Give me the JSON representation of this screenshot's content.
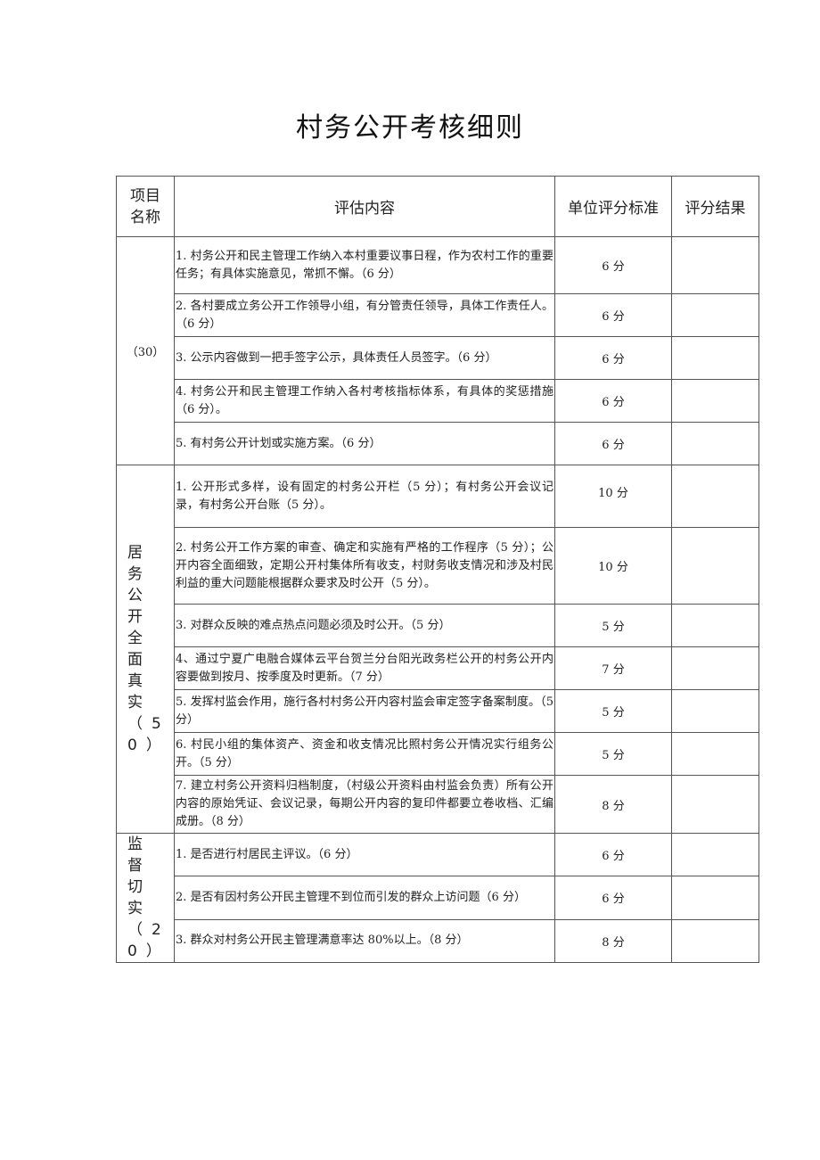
{
  "title": "村务公开考核细则",
  "headers": {
    "item": "项目名称",
    "content": "评估内容",
    "standard": "单位评分标准",
    "result": "评分结果"
  },
  "sections": [
    {
      "name": "（30）",
      "rows": [
        {
          "content": "1. 村务公开和民主管理工作纳入本村重要议事日程，作为农村工作的重要任务；有具体实施意见，常抓不懈。（6 分）",
          "score": "6 分",
          "result": ""
        },
        {
          "content": "2. 各村要成立务公开工作领导小组，有分管责任领导，具体工作责任人。（6 分）",
          "score": "6 分",
          "result": ""
        },
        {
          "content": "3. 公示内容做到一把手签字公示，具体责任人员签字。（6 分）",
          "score": "6 分",
          "result": ""
        },
        {
          "content": "4. 村务公开和民主管理工作纳入各村考核指标体系，有具体的奖惩措施（6 分）。",
          "score": "6 分",
          "result": ""
        },
        {
          "content": "5. 有村务公开计划或实施方案。（6 分）",
          "score": "6 分",
          "result": ""
        }
      ]
    },
    {
      "name": "居务公开全面真实（50）",
      "rows": [
        {
          "content": "1. 公开形式多样，设有固定的村务公开栏（5 分）；有村务公开会议记录，有村务公开台账（5 分）。",
          "score": "10 分",
          "result": ""
        },
        {
          "content": "2. 村务公开工作方案的审查、确定和实施有严格的工作程序（5 分）；公开内容全面细致，定期公开村集体所有收支，村财务收支情况和涉及村民利益的重大问题能根据群众要求及时公开（5 分）。",
          "score": "10 分",
          "result": ""
        },
        {
          "content": "3. 对群众反映的难点热点问题必须及时公开。（5 分）",
          "score": "5 分",
          "result": ""
        },
        {
          "content": "4、通过宁夏广电融合媒体云平台贺兰分台阳光政务栏公开的村务公开内容要做到按月、按季度及时更新。（7 分）",
          "score": "7 分",
          "result": ""
        },
        {
          "content": "5. 发挥村监会作用，施行各村村务公开内容村监会审定签字备案制度。（5 分）",
          "score": "5 分",
          "result": ""
        },
        {
          "content": "6. 村民小组的集体资产、资金和收支情况比照村务公开情况实行组务公开。（5 分）",
          "score": "5 分",
          "result": ""
        },
        {
          "content": "7. 建立村务公开资料归档制度，（村级公开资料由村监会负责）所有公开内容的原始凭证、会议记录，每期公开内容的复印件都要立卷收档、汇编成册。（8 分）",
          "score": "8 分",
          "result": ""
        }
      ]
    },
    {
      "name": "监督切实（20）",
      "rows": [
        {
          "content": "1. 是否进行村居民主评议。（6 分）",
          "score": "6 分",
          "result": ""
        },
        {
          "content": "2. 是否有因村务公开民主管理不到位而引发的群众上访问题（6 分）",
          "score": "6 分",
          "result": ""
        },
        {
          "content": "3. 群众对村务公开民主管理满意率达 80%以上。（8 分）",
          "score": "8 分",
          "result": ""
        }
      ]
    }
  ]
}
